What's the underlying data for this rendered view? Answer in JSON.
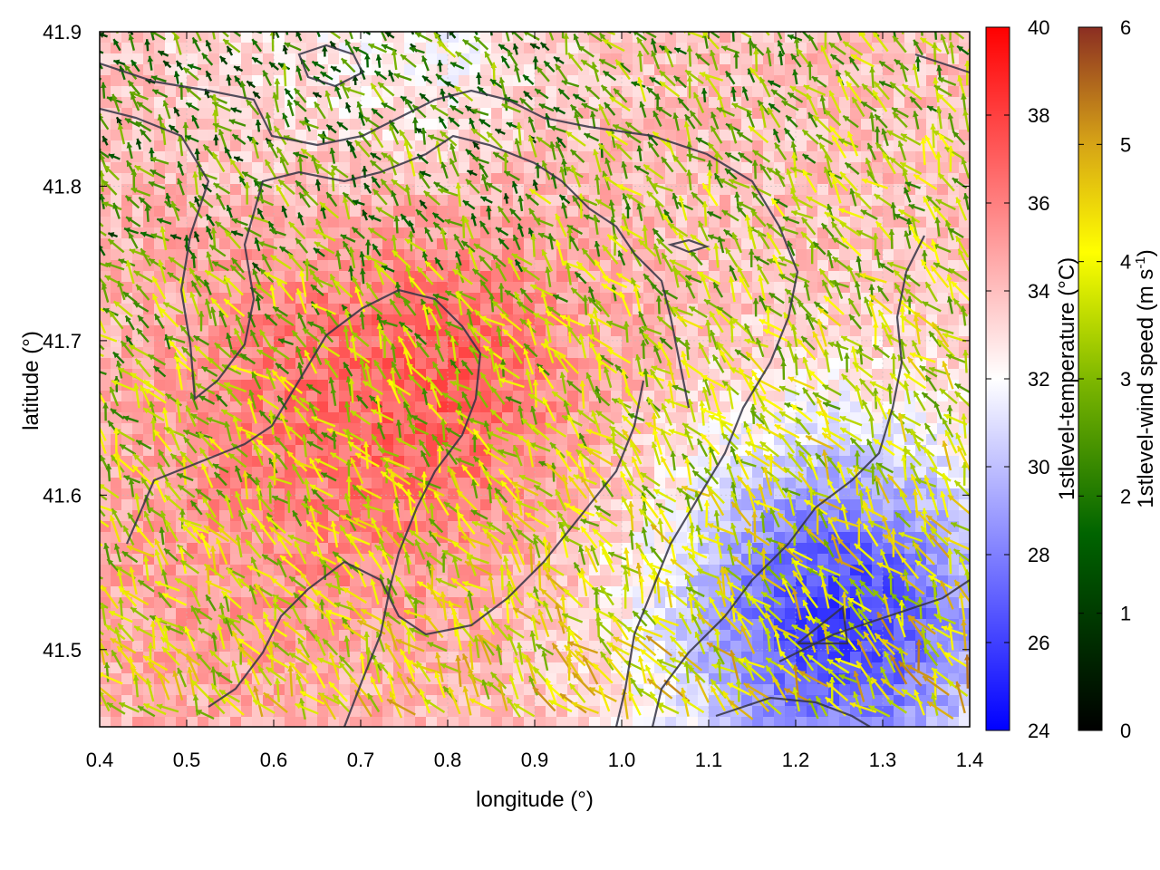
{
  "chart_data": {
    "type": "heatmap",
    "xlabel": "longitude (°)",
    "ylabel": "latitude (°)",
    "xlim": [
      0.4,
      1.4
    ],
    "ylim": [
      41.45,
      41.9
    ],
    "x_ticks": [
      "0.4",
      "0.5",
      "0.6",
      "0.7",
      "0.8",
      "0.9",
      "1.0",
      "1.1",
      "1.2",
      "1.3",
      "1.4"
    ],
    "y_ticks": [
      "41.5",
      "41.6",
      "41.7",
      "41.8",
      "41.9"
    ],
    "grid": true,
    "layers": [
      "temperature heatmap",
      "wind vectors",
      "terrain contours"
    ],
    "colorbars": [
      {
        "label": "1stlevel-temperature (°C)",
        "range": [
          24,
          40
        ],
        "ticks": [
          "24",
          "26",
          "28",
          "30",
          "32",
          "34",
          "36",
          "38",
          "40"
        ],
        "colors": [
          "#0000ff",
          "#ffffff",
          "#ff0000"
        ]
      },
      {
        "label_main": "1stlevel-wind speed (m s",
        "label_sup": "-1",
        "label_end": ")",
        "range": [
          0,
          6
        ],
        "ticks": [
          "0",
          "1",
          "2",
          "3",
          "4",
          "5",
          "6"
        ],
        "colors": [
          "#000000",
          "#006400",
          "#7fb800",
          "#ffff00",
          "#d4a017",
          "#8b2500"
        ]
      }
    ],
    "temperature_regions": [
      {
        "name": "warm core west-center",
        "lon": 0.75,
        "lat": 41.68,
        "value": 37.5
      },
      {
        "name": "warm north",
        "lon": 0.6,
        "lat": 41.85,
        "value": 35.5
      },
      {
        "name": "warm southwest",
        "lon": 0.55,
        "lat": 41.55,
        "value": 35
      },
      {
        "name": "cool north patch",
        "lon": 0.67,
        "lat": 41.89,
        "value": 30
      },
      {
        "name": "cool southeast",
        "lon": 1.25,
        "lat": 41.52,
        "value": 26
      }
    ],
    "wind_note": "vectors colored by speed, mostly 2–4 m s-1, directed from south-east toward north-west"
  }
}
